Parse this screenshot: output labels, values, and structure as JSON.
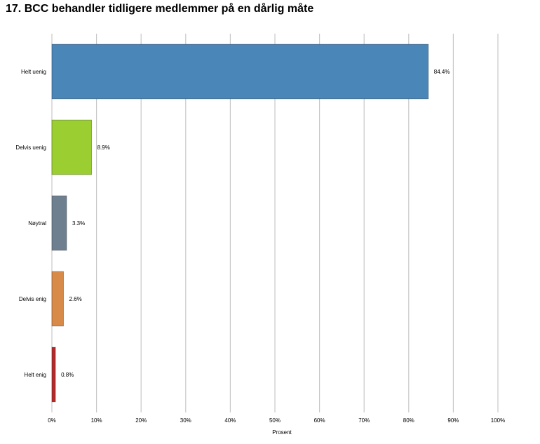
{
  "chart_data": {
    "type": "bar",
    "orientation": "horizontal",
    "title": "17. BCC behandler tidligere medlemmer på en dårlig måte",
    "xlabel": "Prosent",
    "ylabel": "",
    "xlim": [
      0,
      100
    ],
    "grid": true,
    "categories": [
      "Helt uenig",
      "Delvis uenig",
      "Nøytral",
      "Delvis enig",
      "Helt enig"
    ],
    "values": [
      84.4,
      8.9,
      3.3,
      2.6,
      0.8
    ],
    "value_labels": [
      "84.4%",
      "8.9%",
      "3.3%",
      "2.6%",
      "0.8%"
    ],
    "colors": [
      "#4a86b8",
      "#9bce31",
      "#6e7f8f",
      "#d88a48",
      "#b42a2a"
    ],
    "ticks": [
      0,
      10,
      20,
      30,
      40,
      50,
      60,
      70,
      80,
      90,
      100
    ],
    "tick_labels": [
      "0%",
      "10%",
      "20%",
      "30%",
      "40%",
      "50%",
      "60%",
      "70%",
      "80%",
      "90%",
      "100%"
    ]
  }
}
